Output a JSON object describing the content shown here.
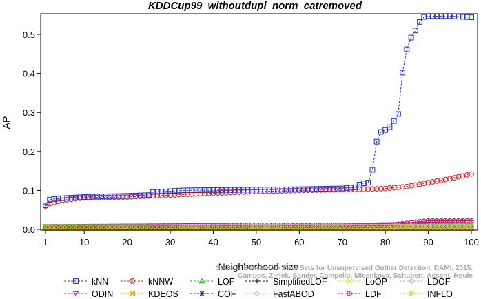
{
  "chart_data": {
    "type": "line",
    "title": "KDDCup99_withoutdupl_norm_catremoved",
    "xlabel": "Neighborhood size",
    "ylabel": "AP",
    "xlim": [
      1,
      100
    ],
    "ylim": [
      0,
      0.55
    ],
    "x_ticks": [
      "1",
      "10",
      "20",
      "30",
      "40",
      "50",
      "60",
      "70",
      "80",
      "90",
      "100"
    ],
    "y_ticks": [
      "0.0",
      "0.1",
      "0.2",
      "0.3",
      "0.4",
      "0.5"
    ],
    "grid": false,
    "legend_position": "bottom",
    "watermark": [
      "Source: Benchmark Data Sets for Unsupervised Outlier Detection. DAMI, 2015.",
      "Campos, Zimek, Sander, Campello, Micenkova, Schubert, Assent, Houle"
    ],
    "series": [
      {
        "name": "kNN",
        "color": "#2233dd",
        "marker": "square",
        "points": [
          [
            1,
            0.062
          ],
          [
            2,
            0.076
          ],
          [
            3,
            0.078
          ],
          [
            4,
            0.079
          ],
          [
            5,
            0.08
          ],
          [
            10,
            0.083
          ],
          [
            15,
            0.085
          ],
          [
            20,
            0.086
          ],
          [
            25,
            0.088
          ],
          [
            26,
            0.096
          ],
          [
            30,
            0.098
          ],
          [
            33,
            0.1
          ],
          [
            40,
            0.101
          ],
          [
            50,
            0.102
          ],
          [
            60,
            0.103
          ],
          [
            70,
            0.105
          ],
          [
            73,
            0.108
          ],
          [
            74,
            0.115
          ],
          [
            75,
            0.118
          ],
          [
            76,
            0.12
          ],
          [
            77,
            0.153
          ],
          [
            78,
            0.225
          ],
          [
            79,
            0.25
          ],
          [
            80,
            0.255
          ],
          [
            81,
            0.262
          ],
          [
            82,
            0.278
          ],
          [
            83,
            0.296
          ],
          [
            84,
            0.402
          ],
          [
            85,
            0.462
          ],
          [
            86,
            0.492
          ],
          [
            87,
            0.51
          ],
          [
            88,
            0.532
          ],
          [
            89,
            0.545
          ],
          [
            90,
            0.547
          ],
          [
            95,
            0.547
          ],
          [
            100,
            0.544
          ]
        ]
      },
      {
        "name": "kNNW",
        "color": "#dd2222",
        "marker": "circle",
        "points": [
          [
            1,
            0.06
          ],
          [
            2,
            0.066
          ],
          [
            4,
            0.072
          ],
          [
            5,
            0.075
          ],
          [
            10,
            0.081
          ],
          [
            20,
            0.083
          ],
          [
            30,
            0.088
          ],
          [
            40,
            0.093
          ],
          [
            50,
            0.097
          ],
          [
            60,
            0.1
          ],
          [
            70,
            0.102
          ],
          [
            75,
            0.103
          ],
          [
            80,
            0.105
          ],
          [
            85,
            0.11
          ],
          [
            90,
            0.12
          ],
          [
            95,
            0.13
          ],
          [
            100,
            0.142
          ]
        ]
      },
      {
        "name": "LOF",
        "color": "#22bb22",
        "marker": "triangle-up",
        "points": [
          [
            1,
            0.006
          ],
          [
            30,
            0.008
          ],
          [
            60,
            0.009
          ],
          [
            85,
            0.011
          ],
          [
            100,
            0.013
          ]
        ]
      },
      {
        "name": "SimplifiedLOF",
        "color": "#111111",
        "marker": "plus",
        "points": [
          [
            1,
            0.004
          ],
          [
            100,
            0.006
          ]
        ]
      },
      {
        "name": "LoOP",
        "color": "#dddd00",
        "marker": "x",
        "points": [
          [
            1,
            0.003
          ],
          [
            100,
            0.004
          ]
        ]
      },
      {
        "name": "LDOF",
        "color": "#aaaaff",
        "marker": "diamond",
        "points": [
          [
            1,
            0.005
          ],
          [
            100,
            0.007
          ]
        ]
      },
      {
        "name": "ODIN",
        "color": "#9922cc",
        "marker": "triangle-down",
        "points": [
          [
            1,
            0.008
          ],
          [
            30,
            0.01
          ],
          [
            50,
            0.012
          ],
          [
            75,
            0.012
          ],
          [
            90,
            0.014
          ],
          [
            100,
            0.013
          ]
        ]
      },
      {
        "name": "KDEOS",
        "color": "#ee9900",
        "marker": "square-x",
        "points": [
          [
            1,
            0.002
          ],
          [
            100,
            0.003
          ]
        ]
      },
      {
        "name": "COF",
        "color": "#111188",
        "marker": "asterisk",
        "points": [
          [
            1,
            0.006
          ],
          [
            100,
            0.007
          ]
        ]
      },
      {
        "name": "FastABOD",
        "color": "#ff99dd",
        "marker": "diamond",
        "points": [
          [
            1,
            0.007
          ],
          [
            100,
            0.008
          ]
        ]
      },
      {
        "name": "LDF",
        "color": "#bb2255",
        "marker": "circle-plus",
        "points": [
          [
            1,
            0.004
          ],
          [
            60,
            0.007
          ],
          [
            80,
            0.01
          ],
          [
            85,
            0.016
          ],
          [
            88,
            0.02
          ],
          [
            90,
            0.022
          ],
          [
            100,
            0.022
          ]
        ]
      },
      {
        "name": "INFLO",
        "color": "#99dd22",
        "marker": "hourglass",
        "points": [
          [
            1,
            0.006
          ],
          [
            100,
            0.008
          ]
        ]
      }
    ]
  }
}
